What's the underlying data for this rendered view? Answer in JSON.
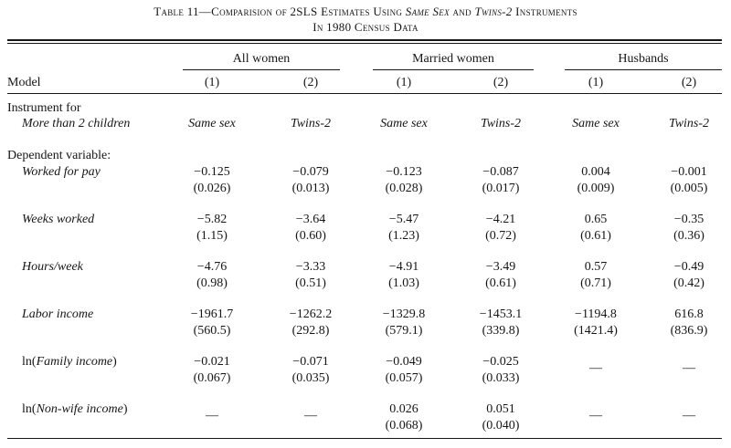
{
  "title_line1": "Table 11—Comparision of 2SLS Estimates Using",
  "title_same_sex": "Same Sex",
  "title_and": "and",
  "title_twins": "Twins-2",
  "title_instruments": "Instruments",
  "title_line2": "In 1980 Census Data",
  "groups": [
    "All women",
    "Married women",
    "Husbands"
  ],
  "model_label": "Model",
  "model_numbers": [
    "(1)",
    "(2)",
    "(1)",
    "(2)",
    "(1)",
    "(2)"
  ],
  "instrument_label": "Instrument for",
  "instrument_sublabel": "More than 2 children",
  "instruments": [
    "Same sex",
    "Twins-2",
    "Same sex",
    "Twins-2",
    "Same sex",
    "Twins-2"
  ],
  "dep_var_label": "Dependent variable:",
  "dash": "—",
  "rows": [
    {
      "label": "Worked for pay",
      "est": [
        "−0.125",
        "−0.079",
        "−0.123",
        "−0.087",
        "0.004",
        "−0.001"
      ],
      "se": [
        "(0.026)",
        "(0.013)",
        "(0.028)",
        "(0.017)",
        "(0.009)",
        "(0.005)"
      ]
    },
    {
      "label": "Weeks worked",
      "est": [
        "−5.82",
        "−3.64",
        "−5.47",
        "−4.21",
        "0.65",
        "−0.35"
      ],
      "se": [
        "(1.15)",
        "(0.60)",
        "(1.23)",
        "(0.72)",
        "(0.61)",
        "(0.36)"
      ]
    },
    {
      "label": "Hours/week",
      "est": [
        "−4.76",
        "−3.33",
        "−4.91",
        "−3.49",
        "0.57",
        "−0.49"
      ],
      "se": [
        "(0.98)",
        "(0.51)",
        "(1.03)",
        "(0.61)",
        "(0.71)",
        "(0.42)"
      ]
    },
    {
      "label": "Labor income",
      "est": [
        "−1961.7",
        "−1262.2",
        "−1329.8",
        "−1453.1",
        "−1194.8",
        "616.8"
      ],
      "se": [
        "(560.5)",
        "(292.8)",
        "(579.1)",
        "(339.8)",
        "(1421.4)",
        "(836.9)"
      ]
    },
    {
      "label_prefix": "ln(",
      "label": "Family income",
      "label_suffix": ")",
      "est": [
        "−0.021",
        "−0.071",
        "−0.049",
        "−0.025",
        null,
        null
      ],
      "se": [
        "(0.067)",
        "(0.035)",
        "(0.057)",
        "(0.033)",
        null,
        null
      ]
    },
    {
      "label_prefix": "ln(",
      "label": "Non-wife income",
      "label_suffix": ")",
      "est": [
        null,
        null,
        "0.026",
        "0.051",
        null,
        null
      ],
      "se": [
        null,
        null,
        "(0.068)",
        "(0.040)",
        null,
        null
      ]
    }
  ]
}
